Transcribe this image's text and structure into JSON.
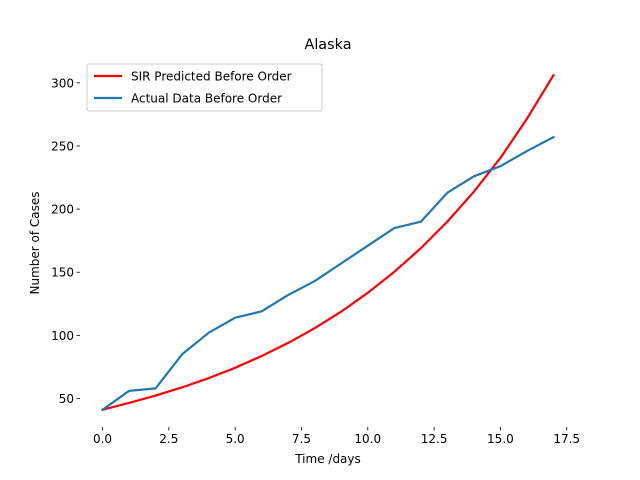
{
  "chart_data": {
    "type": "line",
    "title": "Alaska",
    "xlabel": "Time /days",
    "ylabel": "Number of Cases",
    "xlim": [
      -0.85,
      17.85
    ],
    "ylim": [
      27.4,
      319.7
    ],
    "grid": false,
    "legend_position": "top-left",
    "x_ticks": [
      0.0,
      2.5,
      5.0,
      7.5,
      10.0,
      12.5,
      15.0,
      17.5
    ],
    "x_tick_labels": [
      "0.0",
      "2.5",
      "5.0",
      "7.5",
      "10.0",
      "12.5",
      "15.0",
      "17.5"
    ],
    "y_ticks": [
      50,
      100,
      150,
      200,
      250,
      300
    ],
    "y_tick_labels": [
      "50",
      "100",
      "150",
      "200",
      "250",
      "300"
    ],
    "x": [
      0,
      1,
      2,
      3,
      4,
      5,
      6,
      7,
      8,
      9,
      10,
      11,
      12,
      13,
      14,
      15,
      16,
      17
    ],
    "series": [
      {
        "name": "SIR Predicted Before Order",
        "color": "#ff0000",
        "values": [
          41,
          46.5,
          52.3,
          58.8,
          66.1,
          74.3,
          83.6,
          94,
          105.7,
          118.8,
          133.7,
          150.3,
          169,
          190.1,
          213.8,
          240.5,
          271.5,
          306
        ]
      },
      {
        "name": "Actual Data Before Order",
        "color": "#1f77b4",
        "values": [
          41,
          56,
          58,
          85,
          102,
          114,
          119,
          132,
          143,
          157,
          171,
          185,
          190,
          213,
          226,
          234,
          246,
          257
        ]
      }
    ]
  }
}
